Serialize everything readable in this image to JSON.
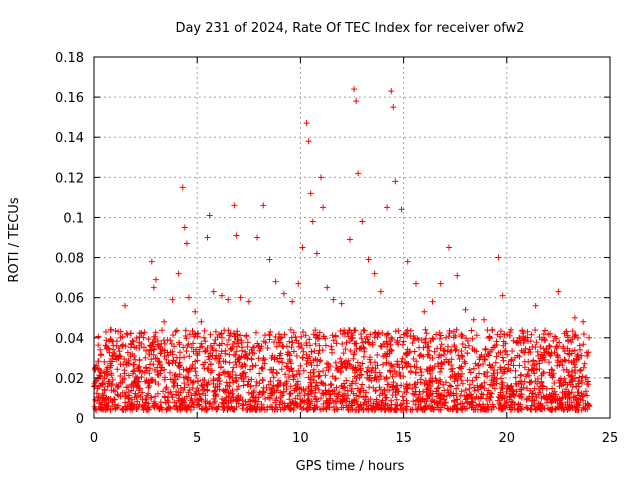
{
  "chart_data": {
    "type": "scatter",
    "title": "Day 231 of 2024, Rate Of TEC Index for receiver ofw2",
    "xlabel": "GPS time / hours",
    "ylabel": "ROTI / TECUs",
    "xlim": [
      0,
      25
    ],
    "ylim": [
      0,
      0.18
    ],
    "x_ticks": [
      "0",
      "5",
      "10",
      "15",
      "20",
      "25"
    ],
    "y_ticks": [
      "0",
      "0.02",
      "0.04",
      "0.06",
      "0.08",
      "0.1",
      "0.12",
      "0.14",
      "0.16",
      "0.18"
    ],
    "grid": true,
    "marker": "+",
    "color": "#ff0000",
    "series": [
      {
        "x": [
          0.3,
          0.5,
          0.8,
          1.1,
          1.5,
          1.9,
          2.3,
          2.8,
          2.9,
          3.0,
          3.4,
          3.8,
          4.1,
          4.3,
          4.4,
          4.5,
          4.6,
          4.9,
          5.2,
          5.5,
          5.6,
          5.8,
          6.2,
          6.5,
          6.8,
          6.9,
          7.1,
          7.5,
          7.9,
          8.2,
          8.5,
          8.8,
          9.2,
          9.6,
          9.9,
          10.1,
          10.3,
          10.4,
          10.5,
          10.6,
          10.8,
          11.0,
          11.1,
          11.3,
          11.6,
          12.0,
          12.4,
          12.6,
          12.7,
          12.8,
          13.0,
          13.3,
          13.6,
          13.9,
          14.2,
          14.4,
          14.5,
          14.6,
          14.9,
          15.2,
          15.6,
          16.0,
          16.4,
          16.8,
          17.2,
          17.6,
          18.0,
          18.4,
          18.9,
          19.3,
          19.6,
          19.8,
          20.2,
          20.6,
          21.0,
          21.4,
          21.7,
          22.1,
          22.5,
          22.9,
          23.3,
          23.7
        ],
        "y": [
          0.034,
          0.028,
          0.044,
          0.036,
          0.056,
          0.038,
          0.042,
          0.078,
          0.065,
          0.069,
          0.048,
          0.059,
          0.072,
          0.115,
          0.095,
          0.087,
          0.06,
          0.053,
          0.048,
          0.09,
          0.101,
          0.063,
          0.061,
          0.059,
          0.106,
          0.091,
          0.06,
          0.058,
          0.09,
          0.106,
          0.079,
          0.068,
          0.062,
          0.058,
          0.067,
          0.085,
          0.147,
          0.138,
          0.112,
          0.098,
          0.082,
          0.12,
          0.105,
          0.065,
          0.059,
          0.057,
          0.089,
          0.164,
          0.158,
          0.122,
          0.098,
          0.079,
          0.072,
          0.063,
          0.105,
          0.163,
          0.155,
          0.118,
          0.104,
          0.078,
          0.067,
          0.053,
          0.058,
          0.067,
          0.085,
          0.071,
          0.054,
          0.049,
          0.049,
          0.044,
          0.08,
          0.061,
          0.044,
          0.04,
          0.043,
          0.056,
          0.039,
          0.042,
          0.063,
          0.043,
          0.05,
          0.048
        ]
      }
    ]
  }
}
